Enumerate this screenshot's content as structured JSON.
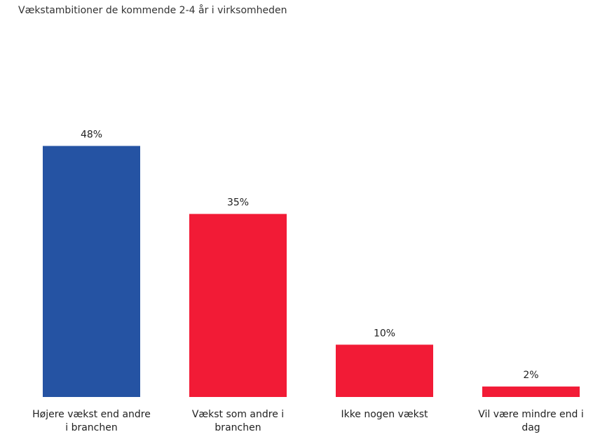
{
  "chart_data": {
    "type": "bar",
    "title": "Vækstambitioner de kommende 2-4 år i virksomheden",
    "categories": [
      "Højere vækst end andre i branchen",
      "Vækst som andre i branchen",
      "Ikke nogen vækst",
      "Vil være mindre end i dag"
    ],
    "values": [
      48,
      35,
      10,
      2
    ],
    "value_labels": [
      "48%",
      "35%",
      "10%",
      "2%"
    ],
    "colors": [
      "#2553a3",
      "#f21b36",
      "#f21b36",
      "#f21b36"
    ]
  }
}
